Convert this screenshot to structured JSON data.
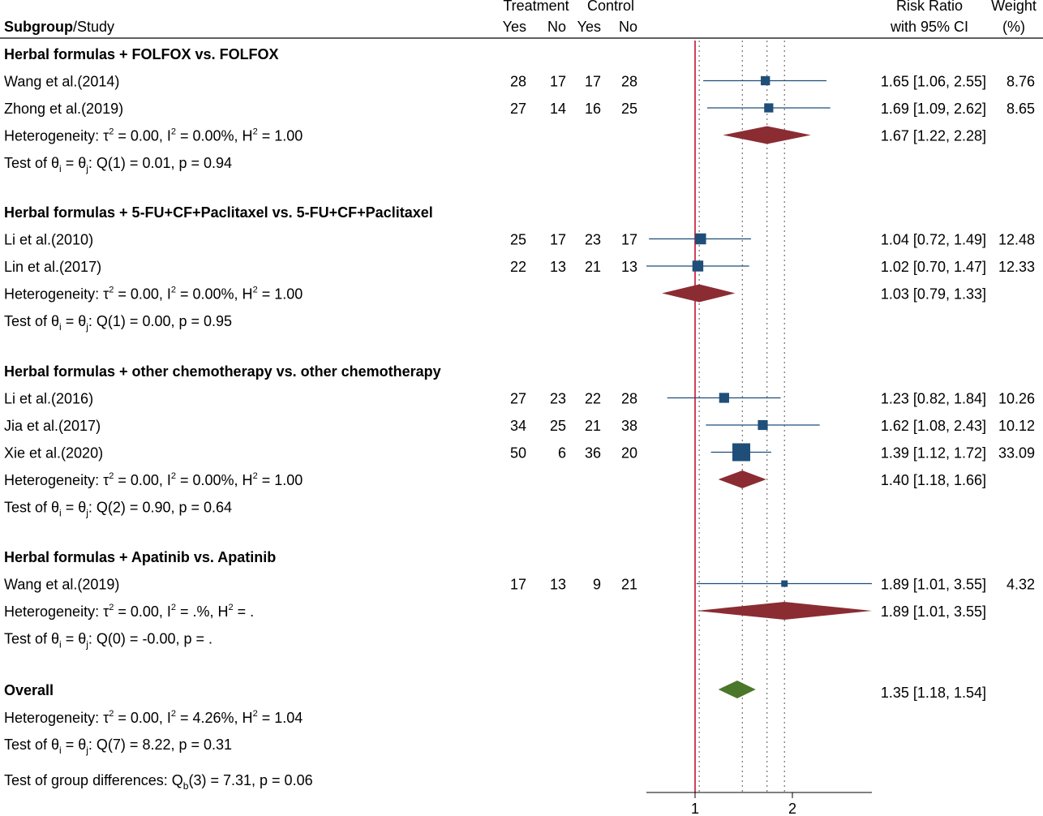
{
  "header": {
    "subgroup_bold": "Subgroup",
    "subgroup_rest": "/Study",
    "treatment": "Treatment",
    "control": "Control",
    "yes": "Yes",
    "no": "No",
    "risk_ratio": "Risk Ratio",
    "ci": "with 95% CI",
    "weight": "Weight",
    "weight_unit": "(%)"
  },
  "chart_data": {
    "type": "forest",
    "x_scale": "log",
    "xticks": [
      1,
      2
    ],
    "null_value": 1,
    "colors": {
      "study": "#1f4e79",
      "subgroup_diamond": "#8b2c33",
      "overall_diamond": "#4a7729",
      "null_line": "#c8102e"
    },
    "subgroups": [
      {
        "title": "Herbal formulas + FOLFOX vs. FOLFOX",
        "studies": [
          {
            "name": "Wang et al.(2014)",
            "t_yes": "28",
            "t_no": "17",
            "c_yes": "17",
            "c_no": "28",
            "rr": 1.65,
            "lo": 1.06,
            "hi": 2.55,
            "rr_text": "1.65 [1.06, 2.55]",
            "weight": "8.76"
          },
          {
            "name": "Zhong et al.(2019)",
            "t_yes": "27",
            "t_no": "14",
            "c_yes": "16",
            "c_no": "25",
            "rr": 1.69,
            "lo": 1.09,
            "hi": 2.62,
            "rr_text": "1.69 [1.09, 2.62]",
            "weight": "8.65"
          }
        ],
        "pooled": {
          "rr": 1.67,
          "lo": 1.22,
          "hi": 2.28,
          "rr_text": "1.67 [1.22, 2.28]"
        },
        "het": {
          "tau": "0.00",
          "i2": "0.00%",
          "h2": "1.00"
        },
        "test": {
          "df": "1",
          "q": "0.01",
          "p": "0.94"
        }
      },
      {
        "title": "Herbal formulas + 5-FU+CF+Paclitaxel vs. 5-FU+CF+Paclitaxel",
        "studies": [
          {
            "name": "Li et al.(2010)",
            "t_yes": "25",
            "t_no": "17",
            "c_yes": "23",
            "c_no": "17",
            "rr": 1.04,
            "lo": 0.72,
            "hi": 1.49,
            "rr_text": "1.04 [0.72, 1.49]",
            "weight": "12.48"
          },
          {
            "name": "Lin et al.(2017)",
            "t_yes": "22",
            "t_no": "13",
            "c_yes": "21",
            "c_no": "13",
            "rr": 1.02,
            "lo": 0.7,
            "hi": 1.47,
            "rr_text": "1.02 [0.70, 1.47]",
            "weight": "12.33"
          }
        ],
        "pooled": {
          "rr": 1.03,
          "lo": 0.79,
          "hi": 1.33,
          "rr_text": "1.03 [0.79, 1.33]"
        },
        "het": {
          "tau": "0.00",
          "i2": "0.00%",
          "h2": "1.00"
        },
        "test": {
          "df": "1",
          "q": "0.00",
          "p": "0.95"
        }
      },
      {
        "title": "Herbal formulas + other chemotherapy vs. other chemotherapy",
        "studies": [
          {
            "name": "Li et al.(2016)",
            "t_yes": "27",
            "t_no": "23",
            "c_yes": "22",
            "c_no": "28",
            "rr": 1.23,
            "lo": 0.82,
            "hi": 1.84,
            "rr_text": "1.23 [0.82, 1.84]",
            "weight": "10.26"
          },
          {
            "name": "Jia et al.(2017)",
            "t_yes": "34",
            "t_no": "25",
            "c_yes": "21",
            "c_no": "38",
            "rr": 1.62,
            "lo": 1.08,
            "hi": 2.43,
            "rr_text": "1.62 [1.08, 2.43]",
            "weight": "10.12"
          },
          {
            "name": "Xie et al.(2020)",
            "t_yes": "50",
            "t_no": "6",
            "c_yes": "36",
            "c_no": "20",
            "rr": 1.39,
            "lo": 1.12,
            "hi": 1.72,
            "rr_text": "1.39 [1.12, 1.72]",
            "weight": "33.09"
          }
        ],
        "pooled": {
          "rr": 1.4,
          "lo": 1.18,
          "hi": 1.66,
          "rr_text": "1.40 [1.18, 1.66]"
        },
        "het": {
          "tau": "0.00",
          "i2": "0.00%",
          "h2": "1.00"
        },
        "test": {
          "df": "2",
          "q": "0.90",
          "p": "0.64"
        }
      },
      {
        "title": "Herbal formulas + Apatinib vs. Apatinib",
        "studies": [
          {
            "name": "Wang et al.(2019)",
            "t_yes": "17",
            "t_no": "13",
            "c_yes": "9",
            "c_no": "21",
            "rr": 1.89,
            "lo": 1.01,
            "hi": 3.55,
            "rr_text": "1.89 [1.01, 3.55]",
            "weight": "4.32"
          }
        ],
        "pooled": {
          "rr": 1.89,
          "lo": 1.01,
          "hi": 3.55,
          "rr_text": "1.89 [1.01, 3.55]"
        },
        "het": {
          "tau": "0.00",
          "i2": ".%",
          "h2": "."
        },
        "test": {
          "df": "0",
          "q": "-0.00",
          "p": "."
        }
      }
    ],
    "overall": {
      "title": "Overall",
      "rr": 1.35,
      "lo": 1.18,
      "hi": 1.54,
      "rr_text": "1.35 [1.18, 1.54]",
      "het": {
        "tau": "0.00",
        "i2": "4.26%",
        "h2": "1.04"
      },
      "test": {
        "df": "7",
        "q": "8.22",
        "p": "0.31"
      }
    },
    "group_diff": {
      "df": "3",
      "q": "7.31",
      "p": "0.06"
    }
  }
}
